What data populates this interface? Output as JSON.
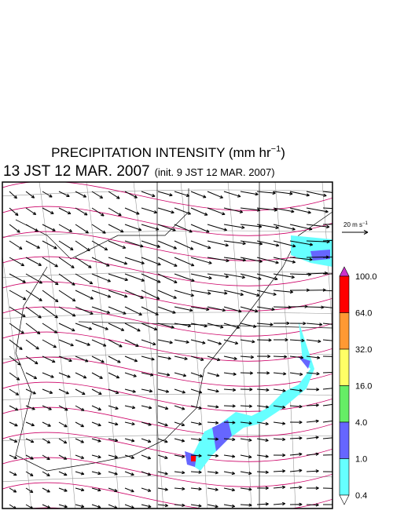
{
  "title": {
    "text": "PRECIPITATION INTENSITY (mm hr",
    "superscript": "−1",
    "close": ")"
  },
  "subtitle": {
    "valid": "13 JST 12 MAR. 2007",
    "init": "(init. 9 JST 12 MAR. 2007)"
  },
  "wind_scale": {
    "label": "20 m s",
    "superscript": "−1"
  },
  "colorbar": {
    "labels": [
      "100.0",
      "64.0",
      "32.0",
      "16.0",
      "4.0",
      "1.0",
      "0.4"
    ],
    "colors": [
      "#ff0000",
      "#ff9933",
      "#ffff66",
      "#66ee66",
      "#6666ff",
      "#66ffff"
    ],
    "over_color": "#cc33cc",
    "under_color": "#ffffff"
  }
}
